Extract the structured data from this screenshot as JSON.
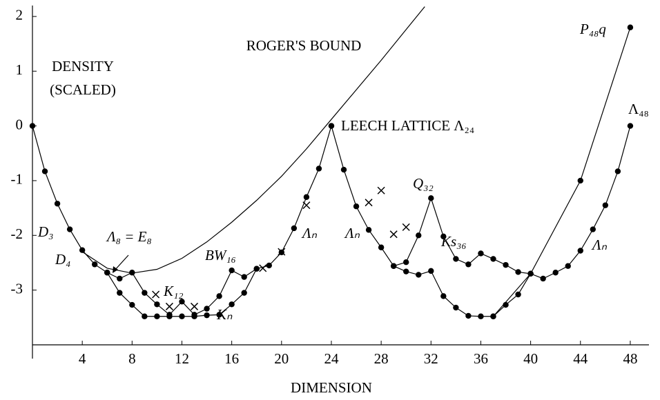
{
  "chart_data": {
    "type": "line",
    "xlabel": "DIMENSION",
    "xlim": [
      0,
      49.5
    ],
    "ylim": [
      -4,
      2.2
    ],
    "xticks": [
      4,
      8,
      12,
      16,
      20,
      24,
      28,
      32,
      36,
      40,
      44,
      48
    ],
    "yticks": [
      2,
      1,
      0,
      -1,
      -2,
      -3
    ],
    "color": "#000000",
    "series": [
      {
        "marker": "dot",
        "x": [
          0,
          1,
          2,
          3,
          4,
          5,
          6,
          7,
          8,
          9,
          10,
          11,
          12,
          13,
          14,
          15,
          16,
          17,
          18,
          19,
          20,
          21,
          22,
          23,
          24
        ],
        "values": [
          0,
          -0.83,
          -1.42,
          -1.89,
          -2.27,
          -2.53,
          -2.68,
          -2.79,
          -2.68,
          -3.05,
          -3.26,
          -3.45,
          -3.21,
          -3.45,
          -3.34,
          -3.11,
          -2.64,
          -2.76,
          -2.61,
          -2.55,
          -2.31,
          -1.87,
          -1.3,
          -0.78,
          0
        ]
      },
      {
        "marker": "dot",
        "x": [
          6,
          7,
          8,
          9,
          10,
          11,
          12,
          13,
          14,
          15,
          16,
          17,
          18
        ],
        "values": [
          -2.68,
          -3.05,
          -3.27,
          -3.48,
          -3.48,
          -3.48,
          -3.48,
          -3.48,
          -3.46,
          -3.45,
          -3.26,
          -3.05,
          -2.61
        ]
      },
      {
        "marker": "dot",
        "x": [
          24,
          25,
          26,
          27,
          28,
          29,
          30,
          31,
          32,
          33,
          34,
          35,
          36,
          37,
          38,
          39,
          40,
          41,
          42,
          43,
          44,
          45,
          46,
          47,
          48
        ],
        "values": [
          0,
          -0.8,
          -1.47,
          -1.9,
          -2.22,
          -2.56,
          -2.66,
          -2.72,
          -2.65,
          -3.11,
          -3.32,
          -3.47,
          -3.48,
          -3.48,
          -3.27,
          -3.08,
          -2.7,
          -2.79,
          -2.68,
          -2.56,
          -2.28,
          -1.89,
          -1.45,
          -0.83,
          0
        ]
      },
      {
        "marker": "dot",
        "x": [
          29,
          30,
          31,
          32,
          33,
          34,
          35,
          36,
          37,
          38,
          39,
          40
        ],
        "values": [
          -2.56,
          -2.49,
          -2,
          -1.32,
          -2.02,
          -2.43,
          -2.53,
          -2.33,
          -2.43,
          -2.54,
          -2.67,
          -2.7
        ]
      },
      {
        "marker": "dot",
        "x": [
          37,
          40,
          44,
          48
        ],
        "values": [
          -3.48,
          -2.7,
          -1,
          1.8
        ]
      },
      {
        "marker": "none",
        "x": [
          4,
          6,
          8,
          10,
          12,
          14,
          16,
          18,
          20,
          22,
          24,
          26,
          28,
          30,
          31.5
        ],
        "values": [
          -2.3,
          -2.6,
          -2.69,
          -2.62,
          -2.42,
          -2.12,
          -1.76,
          -1.36,
          -0.92,
          -0.42,
          0.12,
          0.66,
          1.2,
          1.76,
          2.18
        ]
      },
      {
        "marker": "cross",
        "x": [
          9.9,
          11,
          13,
          18.5,
          20,
          22,
          27,
          28,
          29,
          30
        ],
        "values": [
          -3.08,
          -3.3,
          -3.3,
          -2.6,
          -2.3,
          -1.45,
          -1.4,
          -1.18,
          -1.98,
          -1.85
        ]
      }
    ],
    "annotations": [
      "DENSITY",
      "(SCALED)",
      "ROGER'S BOUND",
      "LEECH LATTICE Λ₂₄",
      "D₃",
      "D₄",
      "Λ₈ = E₈",
      "K₁₂",
      "BW₁₆",
      "Kₙ",
      "Λₙ",
      "Λₙ",
      "Q₃₂",
      "Ks₃₆",
      "Λₙ",
      "P₄₈q",
      "Λ₄₈"
    ]
  }
}
